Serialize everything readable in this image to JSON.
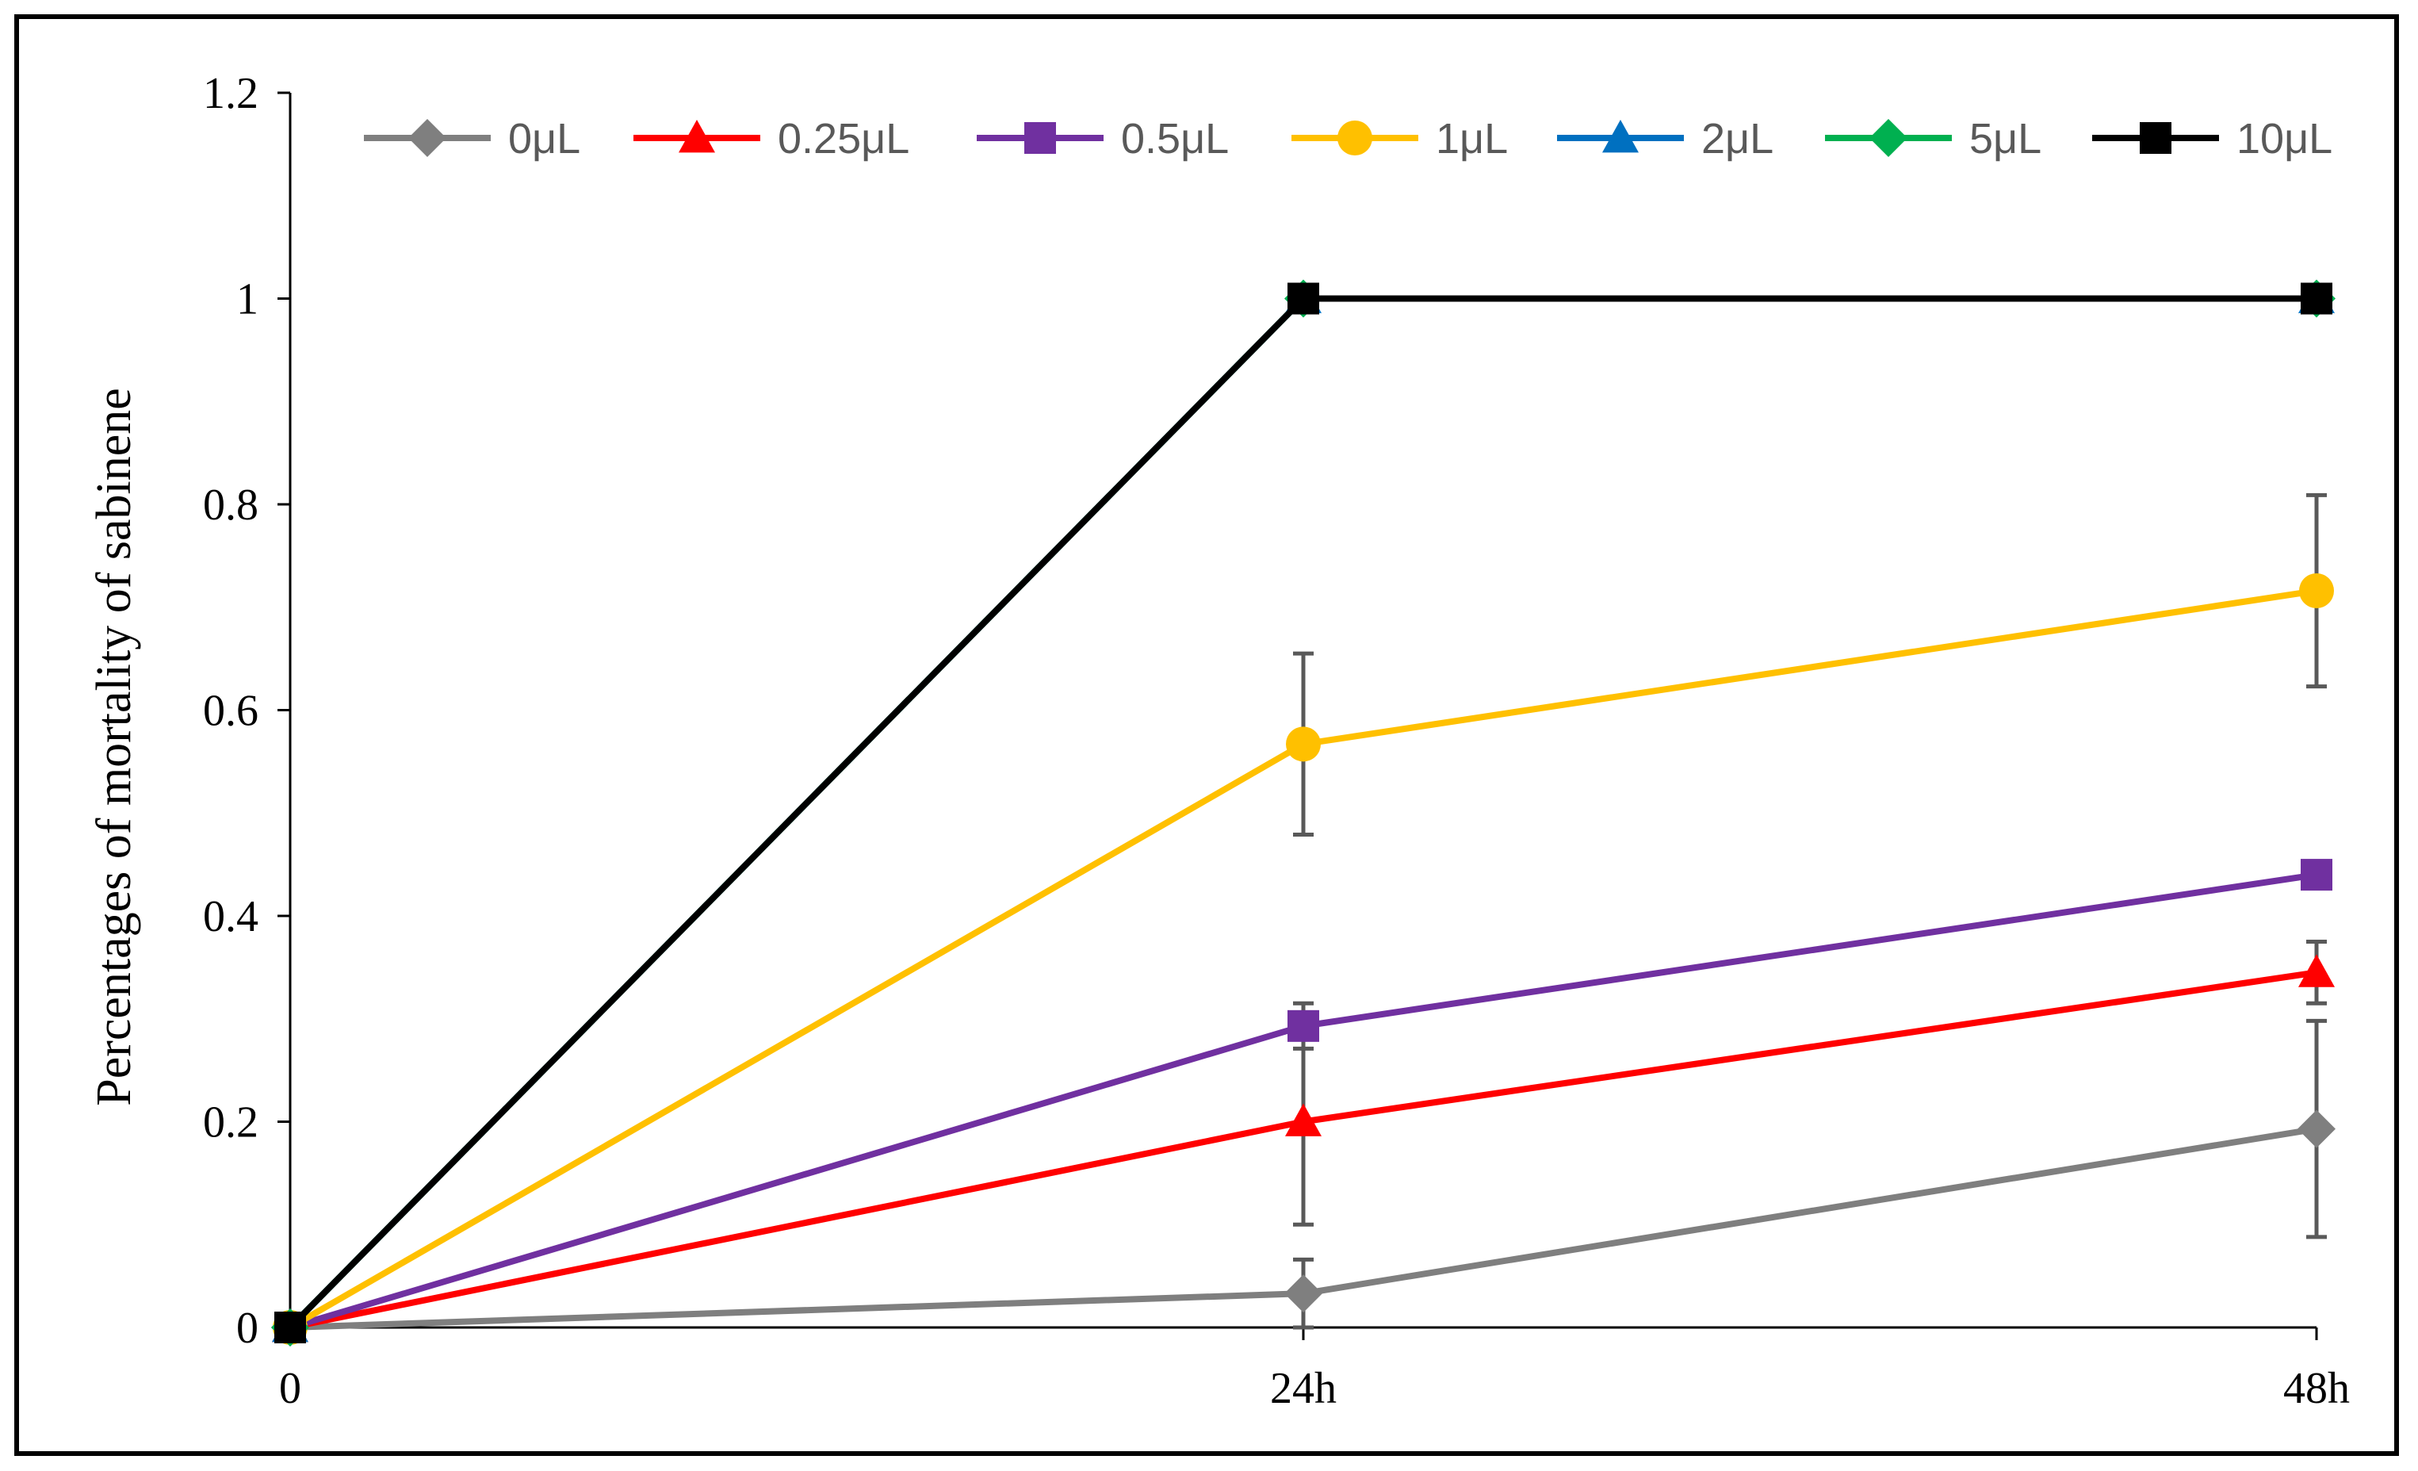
{
  "chart_data": {
    "type": "line",
    "title": "",
    "xlabel": "",
    "ylabel": "Percentages of mortality of sabinene",
    "categories": [
      "0",
      "24h",
      "48h"
    ],
    "y_ticks": [
      "0",
      "0.2",
      "0.4",
      "0.6",
      "0.8",
      "1",
      "1.2"
    ],
    "ylim": [
      0,
      1.2
    ],
    "grid": false,
    "legend_position": "top",
    "series": [
      {
        "name": "0μL",
        "color": "#7f7f7f",
        "marker": "diamond",
        "values": [
          0,
          0.033,
          0.193
        ],
        "errors": [
          0,
          0.033,
          0.105
        ]
      },
      {
        "name": "0.25μL",
        "color": "#ff0000",
        "marker": "triangle",
        "values": [
          0,
          0.2,
          0.345
        ],
        "errors": [
          0,
          0.1,
          0.03
        ]
      },
      {
        "name": "0.5μL",
        "color": "#7030a0",
        "marker": "square",
        "values": [
          0,
          0.293,
          0.44
        ],
        "errors": [
          0,
          0.022,
          0.012
        ]
      },
      {
        "name": "1μL",
        "color": "#ffc000",
        "marker": "circle",
        "values": [
          0,
          0.567,
          0.716
        ],
        "errors": [
          0,
          0.088,
          0.093
        ]
      },
      {
        "name": "2μL",
        "color": "#0070c0",
        "marker": "triangle",
        "values": [
          0,
          1,
          1
        ],
        "errors": [
          0,
          0,
          0
        ]
      },
      {
        "name": "5μL",
        "color": "#00b050",
        "marker": "diamond",
        "values": [
          0,
          1,
          1
        ],
        "errors": [
          0,
          0,
          0
        ]
      },
      {
        "name": "10μL",
        "color": "#000000",
        "marker": "square",
        "values": [
          0,
          1,
          1
        ],
        "errors": [
          0,
          0,
          0
        ]
      }
    ]
  }
}
